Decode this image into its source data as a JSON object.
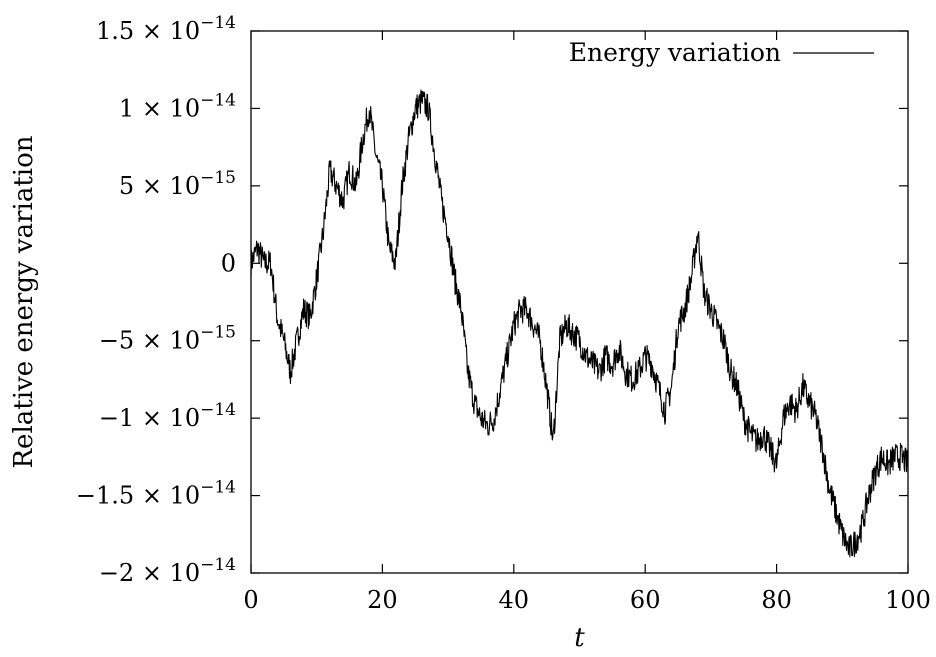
{
  "chart_data": {
    "type": "line",
    "title": "",
    "xlabel": "t",
    "ylabel": "Relative energy variation",
    "xlim": [
      0,
      100
    ],
    "ylim": [
      -2e-14,
      1.5e-14
    ],
    "grid": false,
    "legend_position": "top-right",
    "x_ticks": [
      {
        "value": 0,
        "label": "0"
      },
      {
        "value": 20,
        "label": "20"
      },
      {
        "value": 40,
        "label": "40"
      },
      {
        "value": 60,
        "label": "60"
      },
      {
        "value": 80,
        "label": "80"
      },
      {
        "value": 100,
        "label": "100"
      }
    ],
    "y_ticks": [
      {
        "value": 1.5e-14,
        "mant": "1.5 × 10",
        "exp": "−14"
      },
      {
        "value": 1e-14,
        "mant": "1 × 10",
        "exp": "−14"
      },
      {
        "value": 5e-15,
        "mant": "5 × 10",
        "exp": "−15"
      },
      {
        "value": 0,
        "mant": "0",
        "exp": ""
      },
      {
        "value": -5e-15,
        "mant": "−5 × 10",
        "exp": "−15"
      },
      {
        "value": -1e-14,
        "mant": "−1 × 10",
        "exp": "−14"
      },
      {
        "value": -1.5e-14,
        "mant": "−1.5 × 10",
        "exp": "−14"
      },
      {
        "value": -2e-14,
        "mant": "−2 × 10",
        "exp": "−14"
      }
    ],
    "series": [
      {
        "name": "Energy variation",
        "color": "#000000",
        "x": [
          0,
          1,
          2,
          3,
          4,
          5,
          6,
          7,
          8,
          9,
          10,
          11,
          12,
          13,
          14,
          15,
          16,
          17,
          18,
          19,
          20,
          21,
          22,
          23,
          24,
          25,
          26,
          27,
          28,
          29,
          30,
          31,
          32,
          33,
          34,
          35,
          36,
          37,
          38,
          39,
          40,
          41,
          42,
          43,
          44,
          45,
          46,
          47,
          48,
          49,
          50,
          51,
          52,
          53,
          54,
          55,
          56,
          57,
          58,
          59,
          60,
          61,
          62,
          63,
          64,
          65,
          66,
          67,
          68,
          69,
          70,
          71,
          72,
          73,
          74,
          75,
          76,
          77,
          78,
          79,
          80,
          81,
          82,
          83,
          84,
          85,
          86,
          87,
          88,
          89,
          90,
          91,
          92,
          93,
          94,
          95,
          96,
          97,
          98,
          99,
          100
        ],
        "y": [
          0,
          1e-15,
          0,
          0,
          -3.5e-15,
          -5e-15,
          -7e-15,
          -5e-15,
          -3e-15,
          -3.5e-15,
          -1e-15,
          2e-15,
          6e-15,
          5e-15,
          4e-15,
          6e-15,
          5e-15,
          8e-15,
          1e-14,
          7e-15,
          5e-15,
          1e-15,
          0,
          5e-15,
          8e-15,
          1e-14,
          1.05e-14,
          1e-14,
          7e-15,
          4e-15,
          2e-15,
          -1e-15,
          -3e-15,
          -7e-15,
          -9e-15,
          -1e-14,
          -1.05e-14,
          -1e-14,
          -8e-15,
          -6e-15,
          -4e-15,
          -3e-15,
          -3e-15,
          -4e-15,
          -5e-15,
          -8e-15,
          -1.15e-14,
          -5e-15,
          -4e-15,
          -4.5e-15,
          -5e-15,
          -6e-15,
          -6.5e-15,
          -7e-15,
          -6e-15,
          -6.5e-15,
          -5.5e-15,
          -7e-15,
          -7.5e-15,
          -7e-15,
          -6e-15,
          -6.5e-15,
          -8e-15,
          -9.5e-15,
          -8e-15,
          -4e-15,
          -3e-15,
          -1e-15,
          2e-15,
          -2e-15,
          -3e-15,
          -4e-15,
          -5e-15,
          -7e-15,
          -8e-15,
          -1e-14,
          -1.1e-14,
          -1.15e-14,
          -1.1e-14,
          -1.2e-14,
          -1.3e-14,
          -1e-14,
          -9e-15,
          -9.5e-15,
          -8e-15,
          -9e-15,
          -1e-14,
          -1.2e-14,
          -1.45e-14,
          -1.6e-14,
          -1.75e-14,
          -1.85e-14,
          -1.8e-14,
          -1.7e-14,
          -1.5e-14,
          -1.35e-14,
          -1.25e-14,
          -1.3e-14,
          -1.25e-14,
          -1.25e-14,
          -1.3e-14
        ]
      }
    ]
  }
}
